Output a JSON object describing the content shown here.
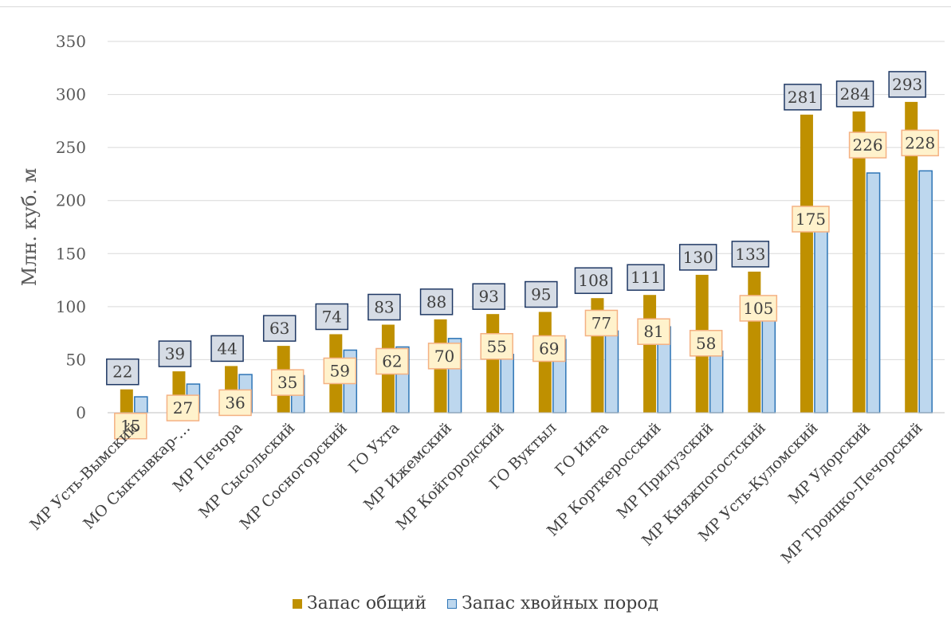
{
  "chart_data": {
    "type": "bar",
    "title": "",
    "xlabel": "",
    "ylabel": "Млн. куб. м",
    "ylim": [
      0,
      350
    ],
    "yticks": [
      0,
      50,
      100,
      150,
      200,
      250,
      300,
      350
    ],
    "grid": true,
    "legend_position": "bottom",
    "categories": [
      "МР Усть-Вымский",
      "МО Сыктывкар-…",
      "МР Печора",
      "МР Сысольский",
      "МР Сосногорский",
      "ГО Ухта",
      "МР Ижемский",
      "МР Койгородский",
      "ГО Вуктыл",
      "ГО Инта",
      "МР Корткеросский",
      "МР Прилузский",
      "МР Княжпогостский",
      "МР Усть-Куломский",
      "МР Удорский",
      "МР Троицко-Печорский"
    ],
    "series": [
      {
        "name": "Запас общий",
        "color": "#bf9000",
        "label_fill": "#d6dce5",
        "label_border": "#1f3864",
        "values": [
          22,
          39,
          44,
          63,
          74,
          83,
          88,
          93,
          95,
          108,
          111,
          130,
          133,
          281,
          284,
          293
        ]
      },
      {
        "name": "Запас хвойных пород",
        "color": "#bdd7ee",
        "border": "#2e75b6",
        "label_fill": "#fff2cc",
        "label_border": "#f4b183",
        "values": [
          15,
          27,
          36,
          35,
          59,
          62,
          70,
          55,
          69,
          77,
          81,
          58,
          105,
          175,
          226,
          228
        ]
      }
    ]
  }
}
